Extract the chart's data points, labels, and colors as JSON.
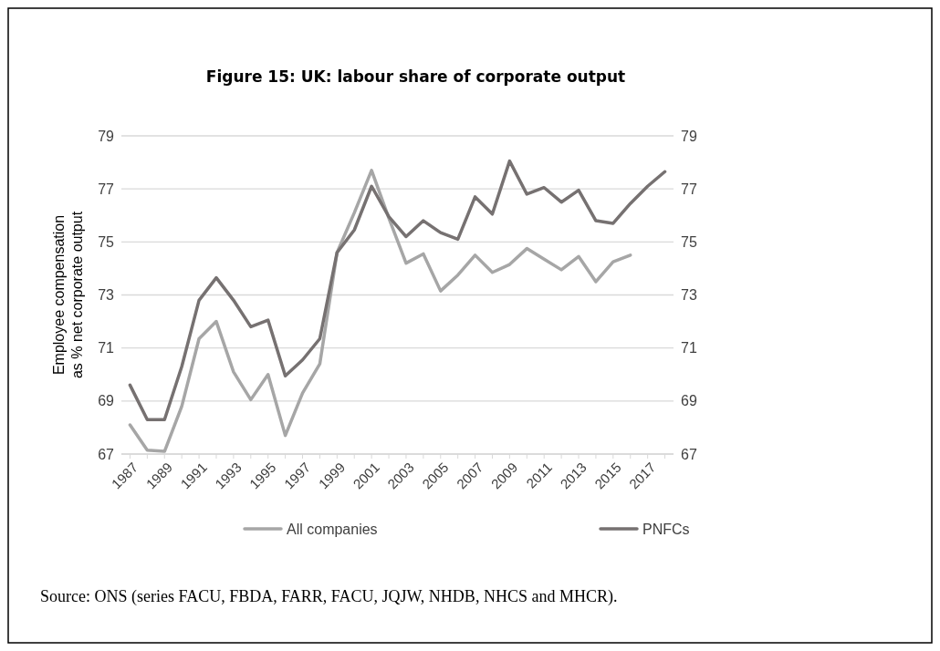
{
  "chart_data": {
    "type": "line",
    "title": "Figure 15: UK: labour share of corporate output",
    "ylabel": "Employee compensation\nas % net corporate output",
    "categories": [
      "1987",
      null,
      "1989",
      null,
      "1991",
      null,
      "1993",
      null,
      "1995",
      null,
      "1997",
      null,
      "1999",
      null,
      "2001",
      null,
      "2003",
      null,
      "2005",
      null,
      "2007",
      null,
      "2009",
      null,
      "2011",
      null,
      "2013",
      null,
      "2015",
      null,
      "2017",
      null
    ],
    "series": [
      {
        "name": "All companies",
        "color": "#a6a6a6",
        "values": [
          68.1,
          67.15,
          67.1,
          68.8,
          71.35,
          72.0,
          70.1,
          69.05,
          70.0,
          67.7,
          69.3,
          70.4,
          74.6,
          76.1,
          77.7,
          75.9,
          74.2,
          74.55,
          73.15,
          73.75,
          74.5,
          73.85,
          74.15,
          74.75,
          74.35,
          73.95,
          74.45,
          73.5,
          74.25,
          74.5,
          null,
          null
        ]
      },
      {
        "name": "PNFCs",
        "color": "#767171",
        "values": [
          69.6,
          68.3,
          68.3,
          70.3,
          72.8,
          73.65,
          72.8,
          71.8,
          72.05,
          69.95,
          70.55,
          71.35,
          74.6,
          75.45,
          77.1,
          75.95,
          75.2,
          75.8,
          75.35,
          75.1,
          76.7,
          76.05,
          78.05,
          76.8,
          77.05,
          76.5,
          76.95,
          75.8,
          75.7,
          76.45,
          77.1,
          77.65
        ]
      }
    ],
    "ylim": [
      67,
      79
    ],
    "yticks": [
      67,
      69,
      71,
      73,
      75,
      77,
      79
    ],
    "y2lim": [
      67,
      79
    ],
    "y2ticks": [
      67,
      69,
      71,
      73,
      75,
      77,
      79
    ],
    "grid": "y",
    "legend": "bottom",
    "marker": "none",
    "line_style": "solid",
    "annotations": [
      "Source: ONS (series FACU, FBDA, FARR, FACU, JQJW, NHDB, NHCS and MHCR)."
    ]
  }
}
